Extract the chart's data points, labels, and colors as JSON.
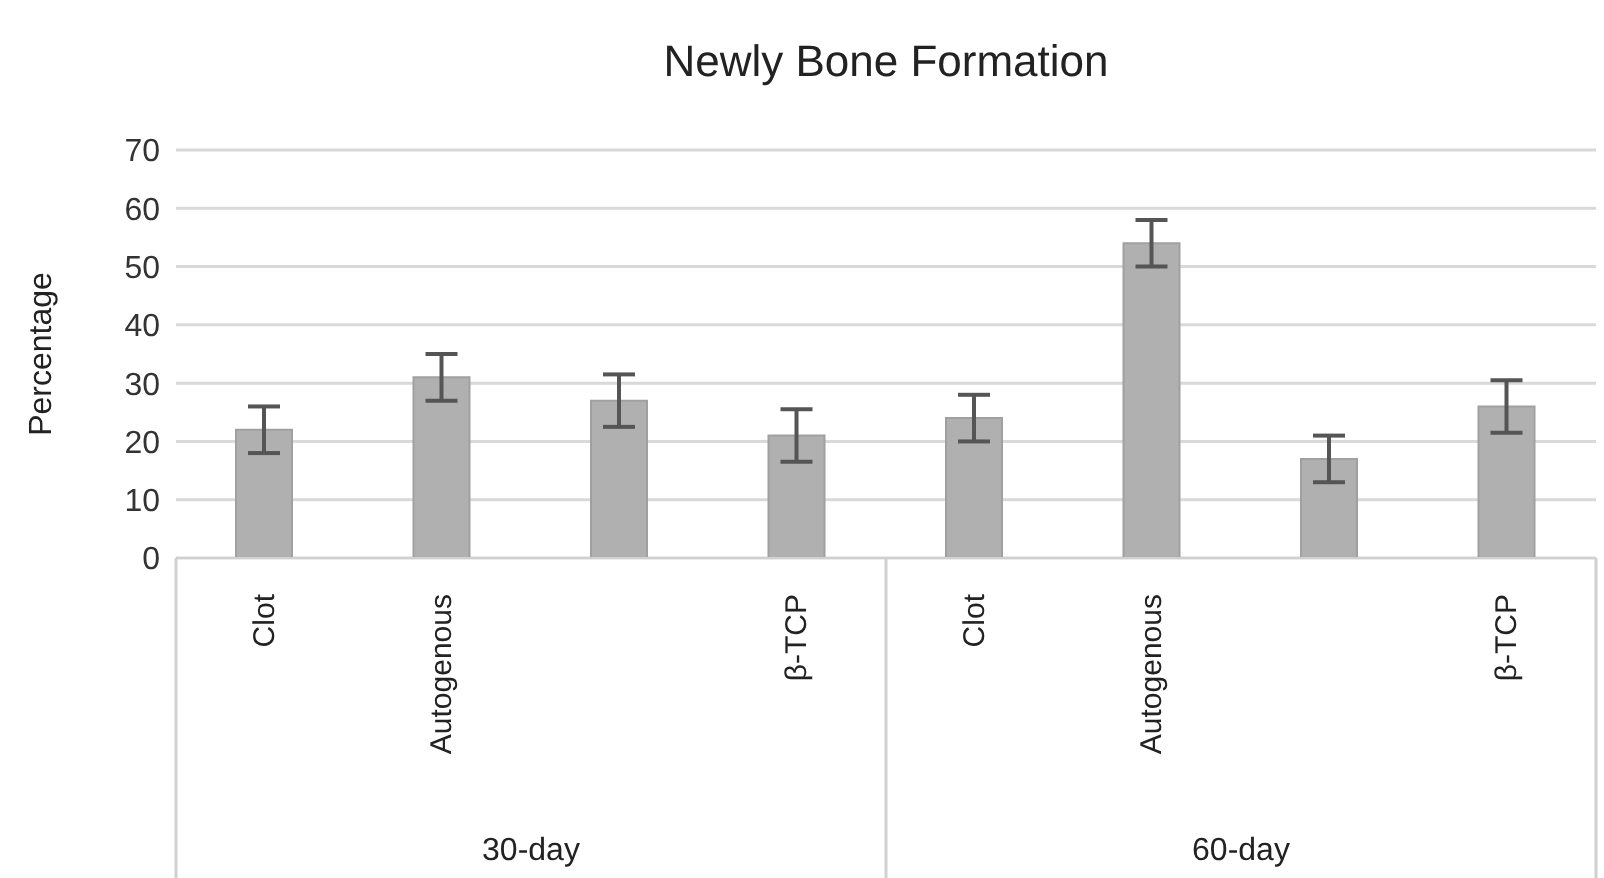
{
  "chart_data": {
    "type": "bar",
    "title": "Newly Bone Formation",
    "ylabel": "Percentage",
    "categories": [
      "Clot",
      "Autogenous",
      null,
      "β-TCP",
      "Clot",
      "Autogenous",
      null,
      "β-TCP"
    ],
    "values": [
      22,
      31,
      27,
      21,
      24,
      54,
      17,
      26
    ],
    "errors": [
      4,
      4,
      4.5,
      4.5,
      4,
      4,
      4,
      4.5
    ],
    "color": "#b0b0b0",
    "annotations": [
      "30-day",
      "60-day"
    ],
    "ylim": [
      0,
      70
    ],
    "yticks": [
      0,
      10,
      20,
      30,
      40,
      50,
      60,
      70
    ],
    "grid": "y"
  }
}
